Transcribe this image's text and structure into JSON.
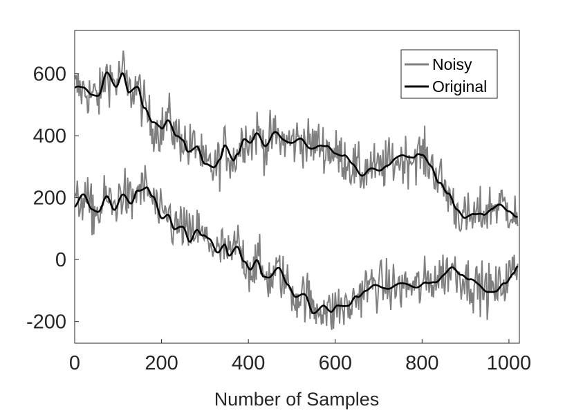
{
  "chart_data": {
    "type": "line",
    "title": "",
    "xlabel": "Number of Samples",
    "ylabel": "",
    "xlim": [
      0,
      1024
    ],
    "ylim": [
      -270,
      740
    ],
    "xticks": [
      "0",
      "200",
      "400",
      "600",
      "800",
      "1000"
    ],
    "yticks": [
      "-200",
      "0",
      "200",
      "400",
      "600"
    ],
    "grid": false,
    "legend": {
      "placement": "top-right",
      "entries": [
        "Noisy",
        "Original"
      ]
    },
    "colors": {
      "noisy": "#7f7f7f",
      "original": "#000000",
      "axes": "#262626"
    },
    "series": [
      {
        "name": "Original",
        "group": "upper",
        "x": [
          0,
          20,
          40,
          55,
          75,
          95,
          110,
          125,
          145,
          160,
          180,
          200,
          215,
          235,
          250,
          260,
          280,
          300,
          320,
          335,
          345,
          365,
          375,
          390,
          405,
          420,
          440,
          460,
          480,
          500,
          520,
          540,
          560,
          580,
          600,
          620,
          640,
          660,
          680,
          700,
          720,
          740,
          760,
          780,
          790,
          800,
          820,
          840,
          860,
          880,
          900,
          920,
          940,
          960,
          980,
          1000,
          1020
        ],
        "y": [
          555,
          545,
          530,
          525,
          600,
          570,
          612,
          540,
          560,
          490,
          430,
          420,
          455,
          400,
          390,
          360,
          370,
          300,
          295,
          320,
          360,
          320,
          350,
          400,
          380,
          410,
          370,
          400,
          380,
          380,
          390,
          370,
          375,
          360,
          340,
          330,
          300,
          280,
          300,
          290,
          310,
          320,
          325,
          330,
          340,
          335,
          310,
          260,
          210,
          160,
          130,
          135,
          150,
          170,
          180,
          165,
          135
        ]
      },
      {
        "name": "Original",
        "group": "lower",
        "x": [
          0,
          20,
          40,
          55,
          75,
          90,
          110,
          130,
          145,
          165,
          180,
          200,
          215,
          230,
          250,
          265,
          280,
          295,
          310,
          330,
          345,
          355,
          375,
          390,
          405,
          420,
          435,
          450,
          470,
          490,
          510,
          530,
          550,
          570,
          590,
          605,
          630,
          650,
          670,
          690,
          710,
          730,
          750,
          770,
          790,
          810,
          830,
          850,
          870,
          890,
          910,
          930,
          950,
          970,
          990,
          1010,
          1020
        ],
        "y": [
          170,
          200,
          160,
          150,
          200,
          170,
          220,
          180,
          225,
          230,
          190,
          130,
          150,
          100,
          110,
          70,
          100,
          70,
          60,
          20,
          40,
          5,
          50,
          5,
          -30,
          0,
          -50,
          -60,
          -40,
          -80,
          -120,
          -110,
          -160,
          -150,
          -175,
          -150,
          -160,
          -120,
          -90,
          -80,
          -85,
          -90,
          -90,
          -85,
          -90,
          -75,
          -60,
          -45,
          -30,
          -50,
          -75,
          -85,
          -95,
          -100,
          -70,
          -40,
          -25
        ]
      }
    ],
    "noise_amplitude": 45
  }
}
